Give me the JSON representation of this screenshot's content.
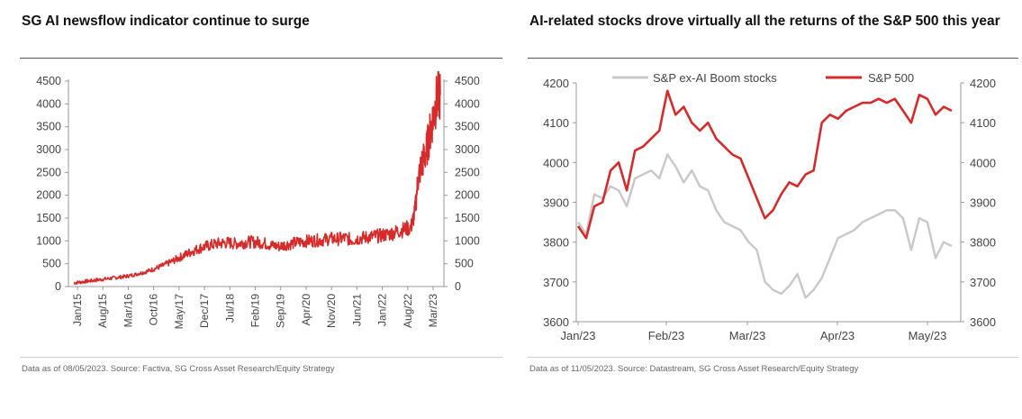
{
  "left_chart": {
    "title": "SG AI newsflow indicator continue to surge",
    "source": "Data as of 08/05/2023. Source: Factiva, SG Cross Asset Research/Equity Strategy",
    "line_color": "#d62b2b"
  },
  "right_chart": {
    "title": "AI-related stocks drove virtually all the returns of the S&P 500 this year",
    "source": "Data as of 11/05/2023. Source: Datastream, SG Cross Asset Research/Equity Strategy"
  },
  "chart_data": [
    {
      "type": "line",
      "title": "SG AI newsflow indicator continue to surge",
      "x_tick_labels": [
        "Jan/15",
        "Aug/15",
        "Mar/16",
        "Oct/16",
        "May/17",
        "Dec/17",
        "Jul/18",
        "Feb/19",
        "Sep/19",
        "Apr/20",
        "Nov/20",
        "Jun/21",
        "Jan/22",
        "Aug/22",
        "Mar/23"
      ],
      "y_left_ticks": [
        0,
        500,
        1000,
        1500,
        2000,
        2500,
        3000,
        3500,
        4000,
        4500
      ],
      "y_right_ticks": [
        0,
        500,
        1000,
        1500,
        2000,
        2500,
        3000,
        3500,
        4000,
        4500
      ],
      "ylim": [
        0,
        4500
      ],
      "grid": false,
      "x_unit": "months since Jan/15",
      "series": [
        {
          "name": "",
          "color": "#d62b2b",
          "x": [
            0,
            2,
            4,
            6,
            8,
            10,
            12,
            14,
            16,
            18,
            20,
            22,
            24,
            26,
            28,
            30,
            32,
            34,
            36,
            38,
            40,
            42,
            44,
            46,
            48,
            50,
            52,
            54,
            56,
            58,
            60,
            62,
            64,
            66,
            68,
            70,
            72,
            74,
            76,
            78,
            80,
            82,
            84,
            86,
            88,
            90,
            92,
            93,
            94,
            95,
            96,
            97,
            98,
            99,
            100
          ],
          "values": [
            80,
            100,
            120,
            140,
            160,
            180,
            200,
            220,
            250,
            290,
            330,
            390,
            450,
            520,
            600,
            680,
            760,
            830,
            880,
            920,
            950,
            960,
            940,
            960,
            980,
            970,
            950,
            900,
            880,
            920,
            950,
            980,
            1000,
            1010,
            1020,
            1050,
            1040,
            1060,
            1020,
            1060,
            1080,
            1100,
            1120,
            1150,
            1200,
            1250,
            1300,
            1600,
            2400,
            2700,
            2900,
            3300,
            3700,
            4100,
            4200
          ]
        }
      ]
    },
    {
      "type": "line",
      "title": "AI-related stocks drove virtually all the returns of the S&P 500 this year",
      "x_tick_labels": [
        "Jan/23",
        "Feb/23",
        "Mar/23",
        "Apr/23",
        "May/23"
      ],
      "y_left_ticks": [
        3600,
        3700,
        3800,
        3900,
        4000,
        4100,
        4200
      ],
      "y_right_ticks": [
        3600,
        3700,
        3800,
        3900,
        4000,
        4100,
        4200
      ],
      "ylim": [
        3600,
        4200
      ],
      "grid": false,
      "legend": "top",
      "x_unit": "trading days since Jan/23",
      "series": [
        {
          "name": "S&P ex-AI Boom stocks",
          "color": "#c8c8c8",
          "x": [
            0,
            2,
            4,
            6,
            8,
            10,
            12,
            14,
            16,
            18,
            20,
            22,
            24,
            26,
            28,
            30,
            32,
            34,
            36,
            38,
            40,
            42,
            44,
            46,
            48,
            50,
            52,
            54,
            56,
            58,
            60,
            62,
            64,
            66,
            68,
            70,
            72,
            74,
            76,
            78,
            80,
            82,
            84,
            86,
            88,
            90,
            92
          ],
          "values": [
            3850,
            3820,
            3920,
            3910,
            3940,
            3930,
            3890,
            3960,
            3970,
            3980,
            3960,
            4020,
            3990,
            3950,
            3980,
            3940,
            3930,
            3880,
            3850,
            3840,
            3830,
            3800,
            3780,
            3700,
            3680,
            3670,
            3690,
            3720,
            3660,
            3680,
            3710,
            3760,
            3810,
            3820,
            3830,
            3850,
            3860,
            3870,
            3880,
            3880,
            3860,
            3780,
            3860,
            3850,
            3760,
            3800,
            3790
          ]
        },
        {
          "name": "S&P 500",
          "color": "#d62b2b",
          "x": [
            0,
            2,
            4,
            6,
            8,
            10,
            12,
            14,
            16,
            18,
            20,
            22,
            24,
            26,
            28,
            30,
            32,
            34,
            36,
            38,
            40,
            42,
            44,
            46,
            48,
            50,
            52,
            54,
            56,
            58,
            60,
            62,
            64,
            66,
            68,
            70,
            72,
            74,
            76,
            78,
            80,
            82,
            84,
            86,
            88,
            90,
            92
          ],
          "values": [
            3840,
            3810,
            3890,
            3900,
            3980,
            4000,
            3930,
            4030,
            4040,
            4060,
            4080,
            4180,
            4120,
            4140,
            4100,
            4080,
            4100,
            4060,
            4040,
            4020,
            4010,
            3960,
            3910,
            3860,
            3880,
            3920,
            3950,
            3940,
            3970,
            3980,
            4100,
            4120,
            4110,
            4130,
            4140,
            4150,
            4150,
            4160,
            4150,
            4160,
            4130,
            4100,
            4170,
            4160,
            4120,
            4140,
            4130
          ]
        }
      ]
    }
  ]
}
